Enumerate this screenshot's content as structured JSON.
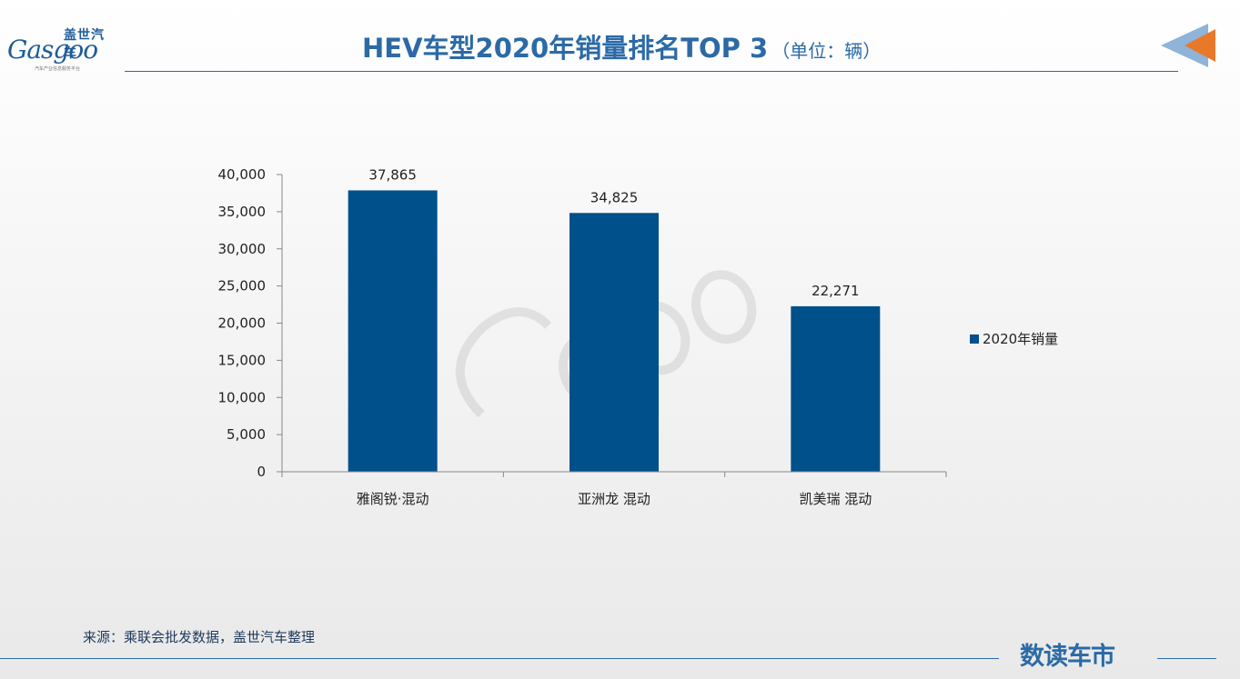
{
  "header": {
    "logo_cn": "盖世汽车",
    "logo_en": "Gasgoo",
    "logo_sub": "汽车产业信息服务平台",
    "title": "HEV车型2020年销量排名TOP 3",
    "unit": "（单位：辆）"
  },
  "chart_data": {
    "type": "bar",
    "categories": [
      "雅阁锐·混动",
      "亚洲龙 混动",
      "凯美瑞 混动"
    ],
    "series": [
      {
        "name": "2020年销量",
        "values": [
          37865,
          34825,
          22271
        ]
      }
    ],
    "data_labels": [
      "37,865",
      "34,825",
      "22,271"
    ],
    "title": "",
    "xlabel": "",
    "ylabel": "",
    "ylim": [
      0,
      40000
    ],
    "yticks": [
      "0",
      "5,000",
      "10,000",
      "15,000",
      "20,000",
      "25,000",
      "30,000",
      "35,000",
      "40,000"
    ],
    "grid": false,
    "legend": "right",
    "color": "#00508c"
  },
  "footer": {
    "source": "来源：乘联会批发数据，盖世汽车整理",
    "brand": "数读车市"
  },
  "colors": {
    "accent": "#2b6aa6",
    "bar": "#00508c",
    "corner_orange": "#e8792b"
  }
}
